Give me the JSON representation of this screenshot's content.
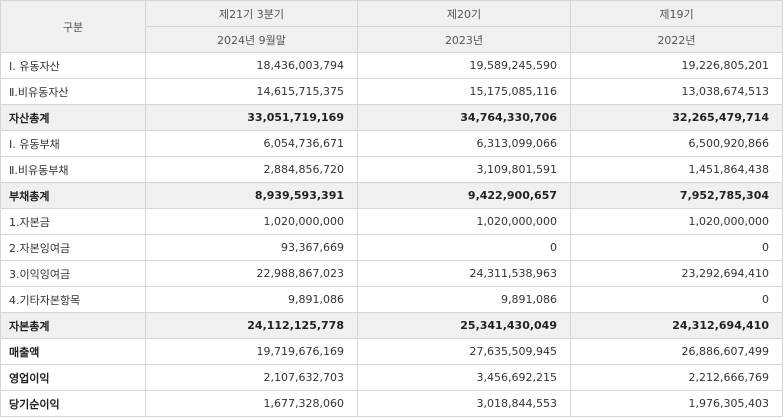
{
  "header": {
    "category": "구분",
    "periods": [
      {
        "label": "제21기 3분기",
        "date": "2024년 9월말"
      },
      {
        "label": "제20기",
        "date": "2023년"
      },
      {
        "label": "제19기",
        "date": "2022년"
      }
    ]
  },
  "rows": [
    {
      "label": "Ⅰ. 유동자산",
      "values": [
        "18,436,003,794",
        "19,589,245,590",
        "19,226,805,201"
      ]
    },
    {
      "label": "Ⅱ.비유동자산",
      "values": [
        "14,615,715,375",
        "15,175,085,116",
        "13,038,674,513"
      ]
    },
    {
      "label": "자산총계",
      "values": [
        "33,051,719,169",
        "34,764,330,706",
        "32,265,479,714"
      ]
    },
    {
      "label": "Ⅰ. 유동부채",
      "values": [
        "6,054,736,671",
        "6,313,099,066",
        "6,500,920,866"
      ]
    },
    {
      "label": "Ⅱ.비유동부채",
      "values": [
        "2,884,856,720",
        "3,109,801,591",
        "1,451,864,438"
      ]
    },
    {
      "label": "부채총계",
      "values": [
        "8,939,593,391",
        "9,422,900,657",
        "7,952,785,304"
      ]
    },
    {
      "label": "1.자본금",
      "values": [
        "1,020,000,000",
        "1,020,000,000",
        "1,020,000,000"
      ]
    },
    {
      "label": "2.자본잉여금",
      "values": [
        "93,367,669",
        "0",
        "0"
      ]
    },
    {
      "label": "3.이익잉여금",
      "values": [
        "22,988,867,023",
        "24,311,538,963",
        "23,292,694,410"
      ]
    },
    {
      "label": "4.기타자본항목",
      "values": [
        "9,891,086",
        "9,891,086",
        "0"
      ]
    },
    {
      "label": "자본총계",
      "values": [
        "24,112,125,778",
        "25,341,430,049",
        "24,312,694,410"
      ]
    },
    {
      "label": "매출액",
      "values": [
        "19,719,676,169",
        "27,635,509,945",
        "26,886,607,499"
      ]
    },
    {
      "label": "영업이익",
      "values": [
        "2,107,632,703",
        "3,456,692,215",
        "2,212,666,769"
      ]
    },
    {
      "label": "당기순이익",
      "values": [
        "1,677,328,060",
        "3,018,844,553",
        "1,976,305,403"
      ]
    }
  ]
}
